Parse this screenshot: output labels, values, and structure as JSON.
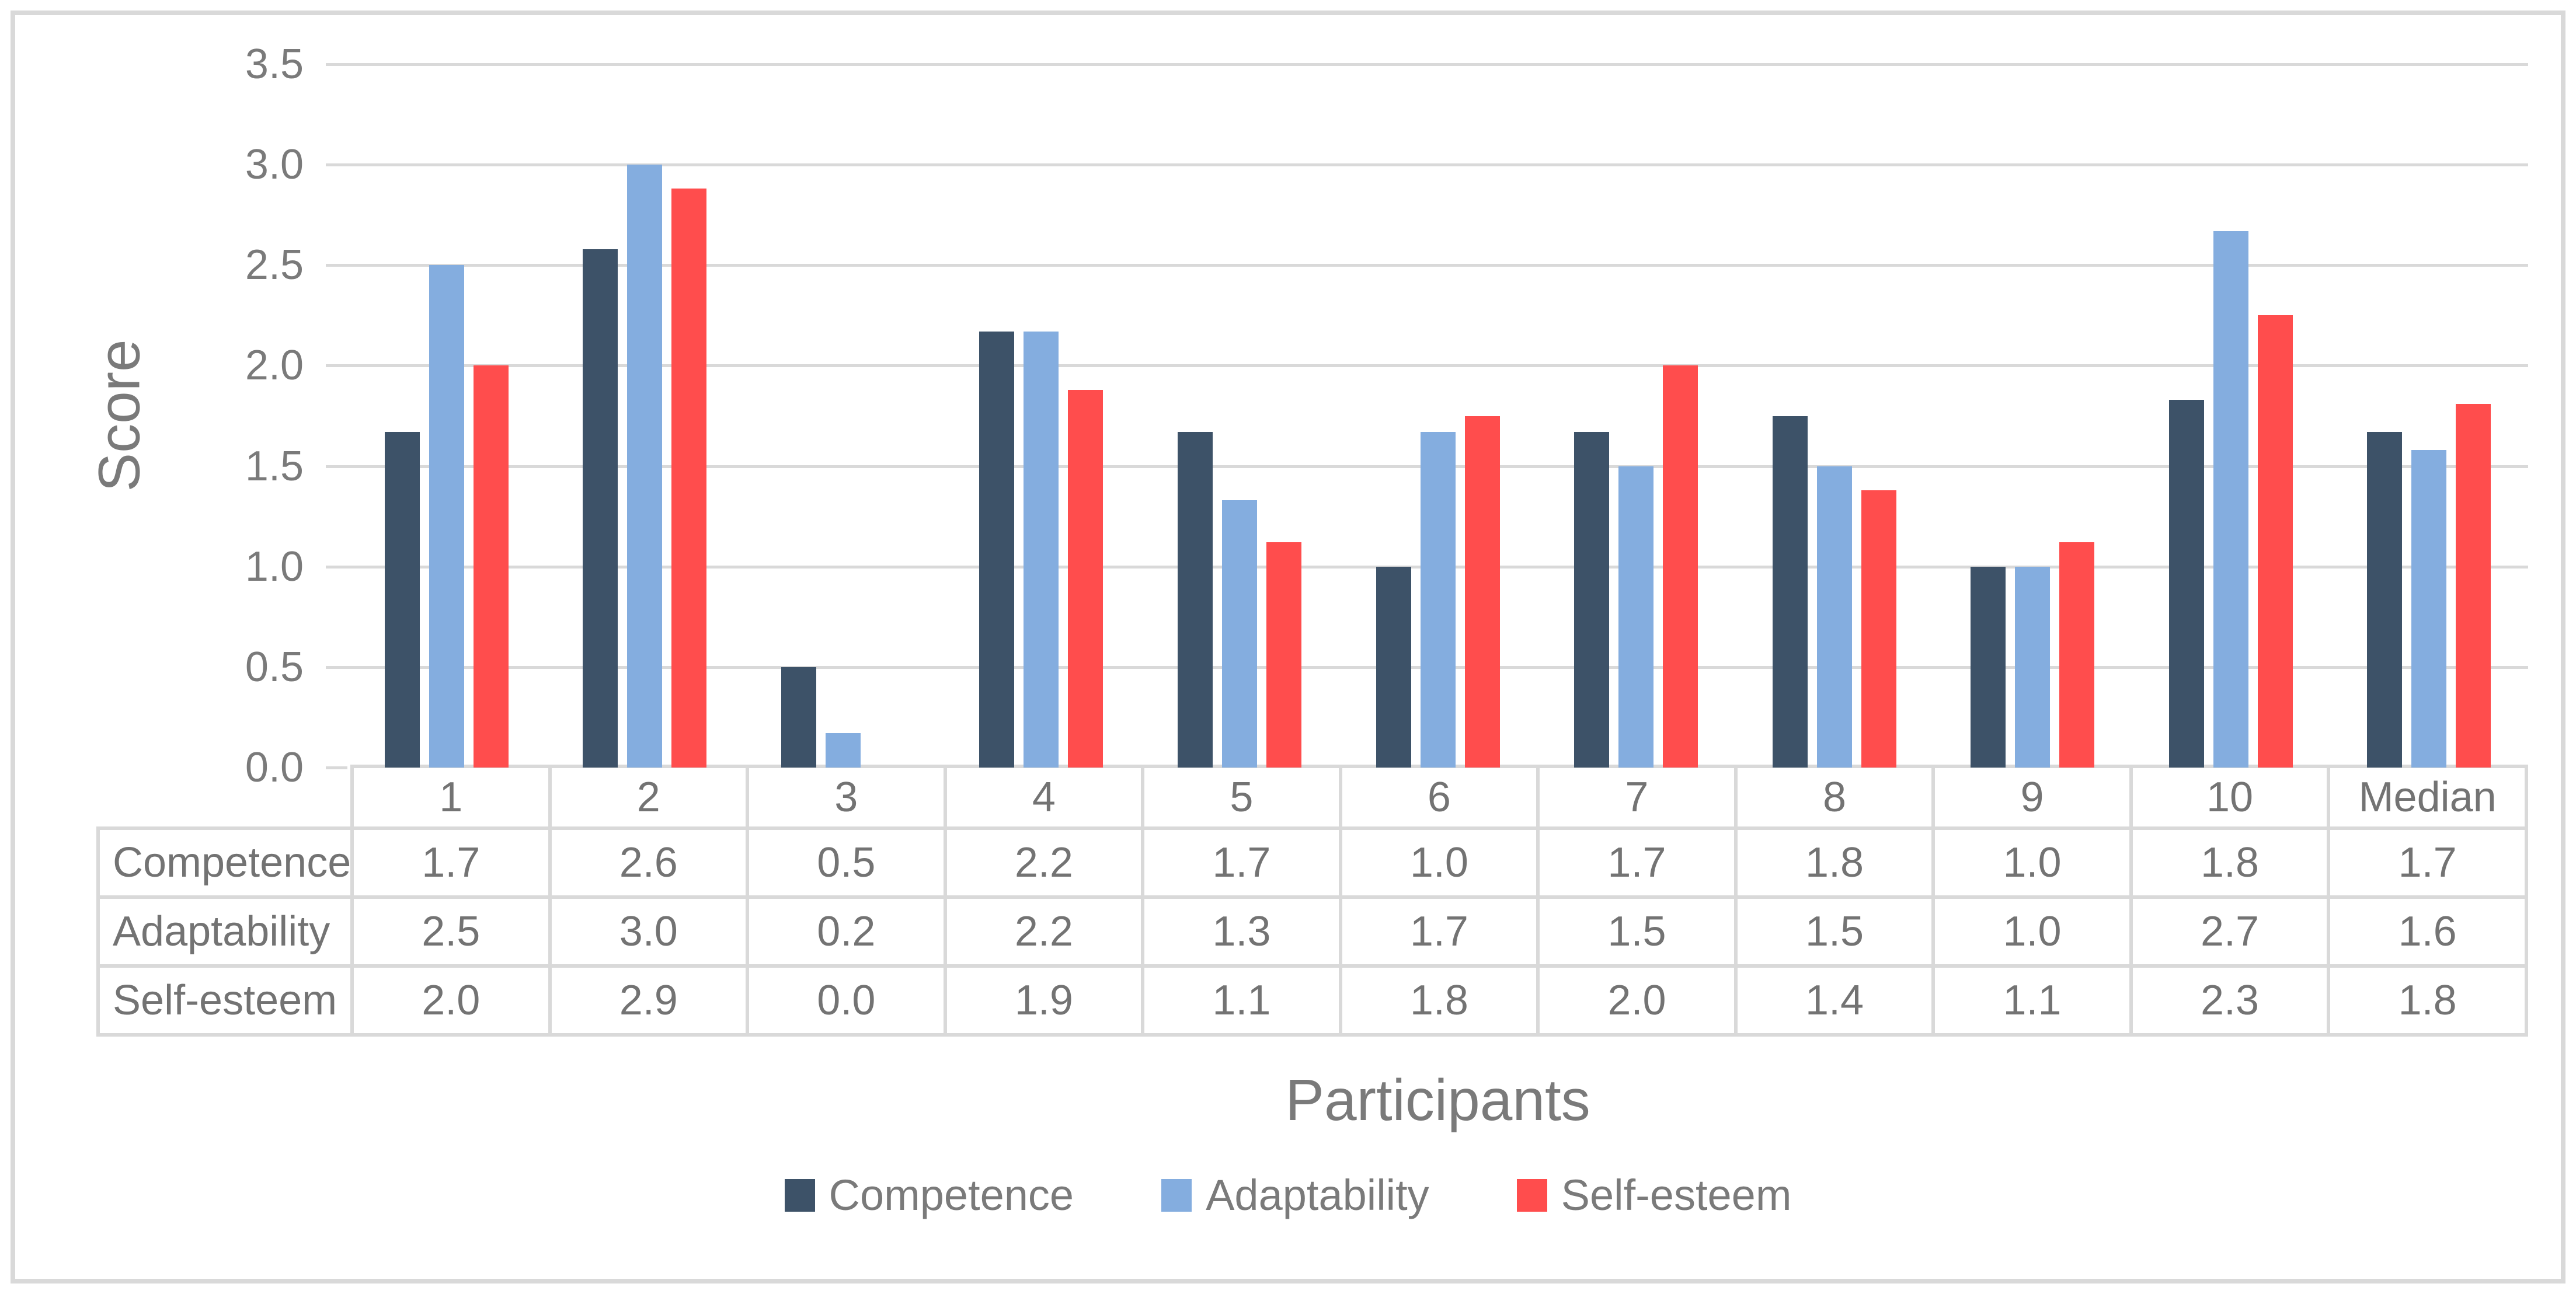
{
  "figure": {
    "y_axis_title": "Score",
    "x_axis_title": "Participants"
  },
  "colors": {
    "competence": "#3D5268",
    "adaptability": "#84ADDF",
    "self_esteem": "#FF4D4D",
    "gridline": "#D9D9D9",
    "table_border": "#D9D9D9",
    "text": "#737373",
    "frame_border": "#D9D9D9",
    "background": "#FFFFFF"
  },
  "chart_data": {
    "type": "bar",
    "title": "",
    "xlabel": "Participants",
    "ylabel": "Score",
    "ylim": [
      0,
      3.5
    ],
    "ytick_step": 0.5,
    "yticks": [
      "3.5",
      "3.0",
      "2.5",
      "2.0",
      "1.5",
      "1.0",
      "0.5",
      "0.0"
    ],
    "grid": true,
    "legend_position": "bottom",
    "categories": [
      "1",
      "2",
      "3",
      "4",
      "5",
      "6",
      "7",
      "8",
      "9",
      "10",
      "Median"
    ],
    "series": [
      {
        "name": "Competence",
        "color": "#3D5268",
        "values": [
          1.67,
          2.58,
          0.5,
          2.17,
          1.67,
          1.0,
          1.67,
          1.75,
          1.0,
          1.83,
          1.67
        ]
      },
      {
        "name": "Adaptability",
        "color": "#84ADDF",
        "values": [
          2.5,
          3.0,
          0.17,
          2.17,
          1.33,
          1.67,
          1.5,
          1.5,
          1.0,
          2.67,
          1.58
        ]
      },
      {
        "name": "Self-esteem",
        "color": "#FF4D4D",
        "values": [
          2.0,
          2.88,
          0.0,
          1.88,
          1.12,
          1.75,
          2.0,
          1.38,
          1.12,
          2.25,
          1.81
        ]
      }
    ],
    "data_table": {
      "row_headers": [
        "Competence",
        "Adaptability",
        "Self-esteem"
      ],
      "rows": [
        [
          "1.7",
          "2.6",
          "0.5",
          "2.2",
          "1.7",
          "1.0",
          "1.7",
          "1.8",
          "1.0",
          "1.8",
          "1.7"
        ],
        [
          "2.5",
          "3.0",
          "0.2",
          "2.2",
          "1.3",
          "1.7",
          "1.5",
          "1.5",
          "1.0",
          "2.7",
          "1.6"
        ],
        [
          "2.0",
          "2.9",
          "0.0",
          "1.9",
          "1.1",
          "1.8",
          "2.0",
          "1.4",
          "1.1",
          "2.3",
          "1.8"
        ]
      ]
    }
  }
}
